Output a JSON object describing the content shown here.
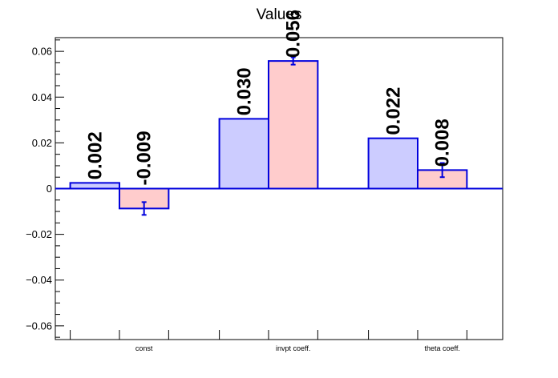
{
  "chart_data": {
    "type": "bar",
    "title": "Values",
    "categories": [
      "const",
      "invpt coeff.",
      "theta coeff."
    ],
    "series": [
      {
        "values": [
          0.0025,
          0.0305,
          0.022
        ],
        "labels": [
          "0.002",
          "0.030",
          "0.022"
        ],
        "errors": [
          0,
          0,
          0
        ],
        "fill_color": "#ccccff",
        "line_color": "#0000dd"
      },
      {
        "values": [
          -0.0087,
          0.0558,
          0.0081
        ],
        "labels": [
          "-0.009",
          "0.056",
          "0.008"
        ],
        "errors": [
          0.0028,
          0.0016,
          0.0031
        ],
        "fill_color": "#ffcccc",
        "line_color": "#0000dd"
      }
    ],
    "ylim": [
      -0.066,
      0.066
    ],
    "yticks": [
      -0.06,
      -0.04,
      -0.02,
      0,
      0.02,
      0.04,
      0.06
    ],
    "ytick_labels": [
      "−0.06",
      "−0.04",
      "−0.02",
      "0",
      "0.02",
      "0.04",
      "0.06"
    ],
    "xlabel": "",
    "ylabel": "",
    "grid": false,
    "legend": "none"
  }
}
